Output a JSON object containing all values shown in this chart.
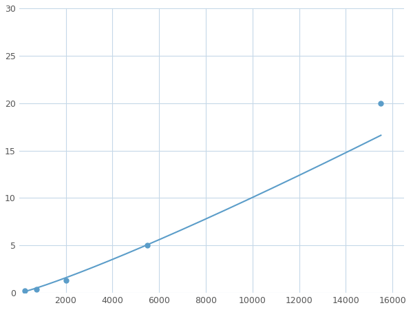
{
  "x_points": [
    250,
    750,
    2000,
    5500,
    15500
  ],
  "y_points": [
    0.2,
    0.4,
    1.3,
    5.0,
    20.0
  ],
  "line_color": "#5b9dc9",
  "marker_color": "#5b9dc9",
  "marker_size": 5,
  "line_width": 1.5,
  "xlim": [
    0,
    16500
  ],
  "ylim": [
    0,
    30
  ],
  "xticks": [
    2000,
    4000,
    6000,
    8000,
    10000,
    12000,
    14000,
    16000
  ],
  "yticks": [
    0,
    5,
    10,
    15,
    20,
    25,
    30
  ],
  "grid_color": "#c5d8e8",
  "background_color": "#ffffff",
  "fig_width": 6.0,
  "fig_height": 4.5,
  "dpi": 100
}
